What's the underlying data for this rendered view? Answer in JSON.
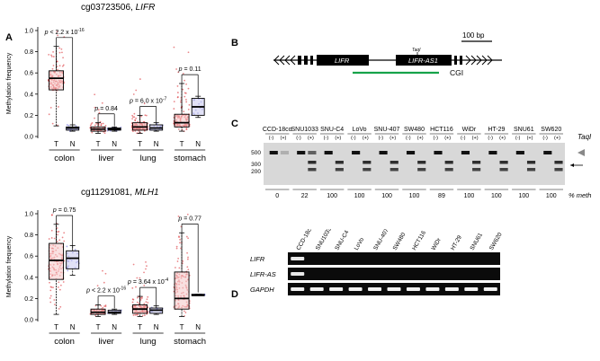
{
  "panel_a": {
    "label": "A",
    "y_axis_label": "Methylation frequency",
    "y_ticks": [
      "1.0",
      "0.8",
      "0.6",
      "0.4",
      "0.2",
      "0.0"
    ],
    "tn_labels": [
      "T",
      "N"
    ],
    "plot1": {
      "title_probe": "cg03723506,",
      "title_gene": "LIFR",
      "tissues": [
        "colon",
        "liver",
        "lung",
        "stomach"
      ],
      "pvalues": [
        {
          "label": "p < 2.2 x 10",
          "exp": "-16"
        },
        {
          "label": "p = 0.84",
          "exp": ""
        },
        {
          "label": "p = 6.0 x 10",
          "exp": "-7"
        },
        {
          "label": "p = 0.11",
          "exp": ""
        }
      ]
    },
    "plot2": {
      "title_probe": "cg11291081,",
      "title_gene": "MLH1",
      "tissues": [
        "colon",
        "liver",
        "lung",
        "stomach"
      ],
      "pvalues": [
        {
          "label": "p = 0.75",
          "exp": ""
        },
        {
          "label": "p < 2.2 x 10",
          "exp": "-16"
        },
        {
          "label": "p = 3.64 x 10",
          "exp": "-4"
        },
        {
          "label": "p = 0.77",
          "exp": ""
        }
      ]
    }
  },
  "chart_data": [
    {
      "type": "box",
      "title": "cg03723506, LIFR",
      "ylabel": "Methylation frequency",
      "ylim": [
        0,
        1.0
      ],
      "categories": [
        "colon",
        "liver",
        "lung",
        "stomach"
      ],
      "groups": [
        "T",
        "N"
      ],
      "boxes": [
        {
          "tissue": "colon",
          "group": "T",
          "q1": 0.44,
          "median": 0.55,
          "q3": 0.62,
          "whisker_low": 0.1,
          "whisker_high": 0.85
        },
        {
          "tissue": "colon",
          "group": "N",
          "q1": 0.06,
          "median": 0.08,
          "q3": 0.09,
          "whisker_low": 0.05,
          "whisker_high": 0.11
        },
        {
          "tissue": "liver",
          "group": "T",
          "q1": 0.05,
          "median": 0.07,
          "q3": 0.09,
          "whisker_low": 0.03,
          "whisker_high": 0.13
        },
        {
          "tissue": "liver",
          "group": "N",
          "q1": 0.06,
          "median": 0.07,
          "q3": 0.08,
          "whisker_low": 0.05,
          "whisker_high": 0.09
        },
        {
          "tissue": "lung",
          "group": "T",
          "q1": 0.06,
          "median": 0.09,
          "q3": 0.13,
          "whisker_low": 0.03,
          "whisker_high": 0.2
        },
        {
          "tissue": "lung",
          "group": "N",
          "q1": 0.06,
          "median": 0.08,
          "q3": 0.11,
          "whisker_low": 0.05,
          "whisker_high": 0.13
        },
        {
          "tissue": "stomach",
          "group": "T",
          "q1": 0.09,
          "median": 0.13,
          "q3": 0.21,
          "whisker_low": 0.05,
          "whisker_high": 0.5
        },
        {
          "tissue": "stomach",
          "group": "N",
          "q1": 0.2,
          "median": 0.28,
          "q3": 0.36,
          "whisker_low": 0.18,
          "whisker_high": 0.38
        }
      ]
    },
    {
      "type": "box",
      "title": "cg11291081, MLH1",
      "ylabel": "Methylation frequency",
      "ylim": [
        0,
        1.0
      ],
      "categories": [
        "colon",
        "liver",
        "lung",
        "stomach"
      ],
      "groups": [
        "T",
        "N"
      ],
      "boxes": [
        {
          "tissue": "colon",
          "group": "T",
          "q1": 0.38,
          "median": 0.56,
          "q3": 0.72,
          "whisker_low": 0.05,
          "whisker_high": 0.9
        },
        {
          "tissue": "colon",
          "group": "N",
          "q1": 0.48,
          "median": 0.58,
          "q3": 0.65,
          "whisker_low": 0.42,
          "whisker_high": 0.7
        },
        {
          "tissue": "liver",
          "group": "T",
          "q1": 0.05,
          "median": 0.07,
          "q3": 0.1,
          "whisker_low": 0.03,
          "whisker_high": 0.14
        },
        {
          "tissue": "liver",
          "group": "N",
          "q1": 0.06,
          "median": 0.07,
          "q3": 0.09,
          "whisker_low": 0.05,
          "whisker_high": 0.1
        },
        {
          "tissue": "lung",
          "group": "T",
          "q1": 0.06,
          "median": 0.1,
          "q3": 0.14,
          "whisker_low": 0.03,
          "whisker_high": 0.22
        },
        {
          "tissue": "lung",
          "group": "N",
          "q1": 0.06,
          "median": 0.09,
          "q3": 0.11,
          "whisker_low": 0.05,
          "whisker_high": 0.13
        },
        {
          "tissue": "stomach",
          "group": "T",
          "q1": 0.1,
          "median": 0.2,
          "q3": 0.45,
          "whisker_low": 0.03,
          "whisker_high": 0.82
        },
        {
          "tissue": "stomach",
          "group": "N",
          "q1": 0.23,
          "median": 0.23,
          "q3": 0.24,
          "whisker_low": 0.23,
          "whisker_high": 0.24
        }
      ]
    }
  ],
  "panel_b": {
    "label": "B",
    "gene_left": "LIFR",
    "gene_right": "LIFR-AS1",
    "enzyme": "TaqI",
    "scale_label": "100 bp",
    "cgi_label": "CGI"
  },
  "panel_c": {
    "label": "C",
    "cell_lines": [
      "CCD-18co",
      "SNU1033",
      "SNU-C4",
      "LoVo",
      "SNU-407",
      "SW480",
      "HCT116",
      "WiDr",
      "HT-29",
      "SNU61",
      "SW620"
    ],
    "lane_minus": "(-)",
    "lane_plus": "(+)",
    "enzyme_label": "TaqI",
    "size_markers": [
      "500",
      "300",
      "200"
    ],
    "percent_meth": [
      "0",
      "22",
      "100",
      "100",
      "100",
      "100",
      "89",
      "100",
      "100",
      "100",
      "100"
    ],
    "percent_meth_label": "% meth"
  },
  "panel_d": {
    "label": "D",
    "lanes": [
      "CCD-18co",
      "SNU1033",
      "SNU-C4",
      "LoVo",
      "SNU-407",
      "SW480",
      "HCT116",
      "WiDr",
      "HT-29",
      "SNU61",
      "SW620"
    ],
    "rows": [
      "LIFR",
      "LIFR-AS",
      "GAPDH"
    ]
  }
}
